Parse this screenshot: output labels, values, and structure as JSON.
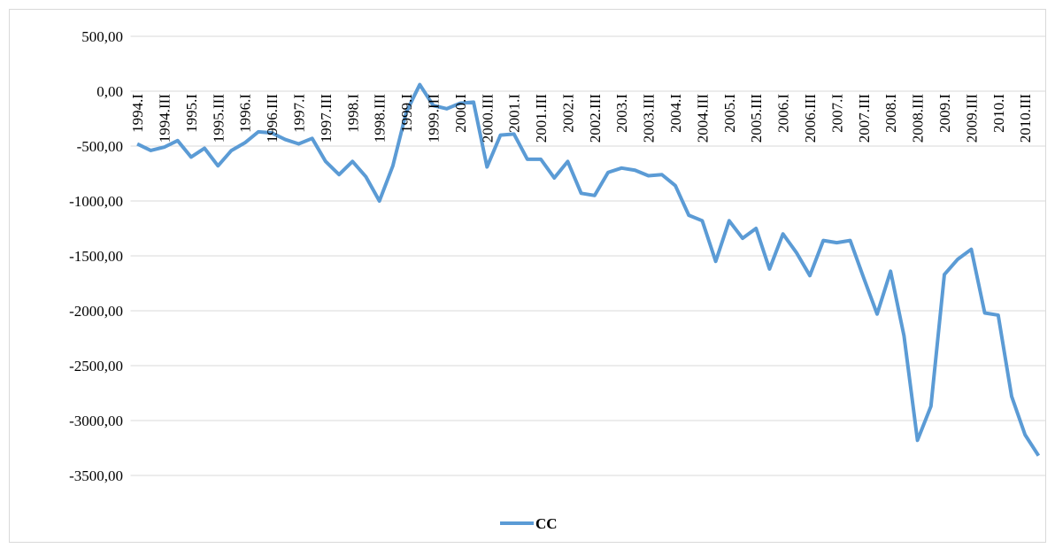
{
  "chart_data": {
    "type": "line",
    "categories": [
      "1994.I",
      null,
      "1994.III",
      null,
      "1995.I",
      null,
      "1995.III",
      null,
      "1996.I",
      null,
      "1996.III",
      null,
      "1997.I",
      null,
      "1997.III",
      null,
      "1998.I",
      null,
      "1998.III",
      null,
      "1999.I",
      null,
      "1999.III",
      null,
      "2000.I",
      null,
      "2000.III",
      null,
      "2001.I",
      null,
      "2001.III",
      null,
      "2002.I",
      null,
      "2002.III",
      null,
      "2003.I",
      null,
      "2003.III",
      null,
      "2004.I",
      null,
      "2004.III",
      null,
      "2005.I",
      null,
      "2005.III",
      null,
      "2006.I",
      null,
      "2006.III",
      null,
      "2007.I",
      null,
      "2007.III",
      null,
      "2008.I",
      null,
      "2008.III",
      null,
      "2009.I",
      null,
      "2009.III",
      null,
      "2010.I",
      null,
      "2010.III",
      null
    ],
    "series": [
      {
        "name": "CC",
        "color": "#5b9bd5",
        "values": [
          -480,
          -540,
          -510,
          -450,
          -600,
          -520,
          -680,
          -540,
          -470,
          -370,
          -380,
          -440,
          -480,
          -430,
          -640,
          -760,
          -640,
          -780,
          -1000,
          -680,
          -190,
          60,
          -130,
          -160,
          -110,
          -100,
          -690,
          -400,
          -390,
          -620,
          -620,
          -790,
          -640,
          -930,
          -950,
          -740,
          -700,
          -720,
          -770,
          -760,
          -860,
          -1130,
          -1180,
          -1550,
          -1180,
          -1340,
          -1250,
          -1620,
          -1300,
          -1470,
          -1680,
          -1360,
          -1380,
          -1360,
          -1700,
          -2030,
          -1640,
          -2230,
          -3180,
          -2870,
          -1670,
          -1530,
          -1440,
          -2020,
          -2040,
          -2780,
          -3130,
          -3320
        ]
      }
    ],
    "ylim": [
      -3500,
      500
    ],
    "yticks": [
      {
        "value": 500,
        "label": "500,00"
      },
      {
        "value": 0,
        "label": "0,00"
      },
      {
        "value": -500,
        "label": "-500,00"
      },
      {
        "value": -1000,
        "label": "-1000,00"
      },
      {
        "value": -1500,
        "label": "-1500,00"
      },
      {
        "value": -2000,
        "label": "-2000,00"
      },
      {
        "value": -2500,
        "label": "-2500,00"
      },
      {
        "value": -3000,
        "label": "-3000,00"
      },
      {
        "value": -3500,
        "label": "-3500,00"
      }
    ],
    "grid": true,
    "legend": "bottom"
  }
}
